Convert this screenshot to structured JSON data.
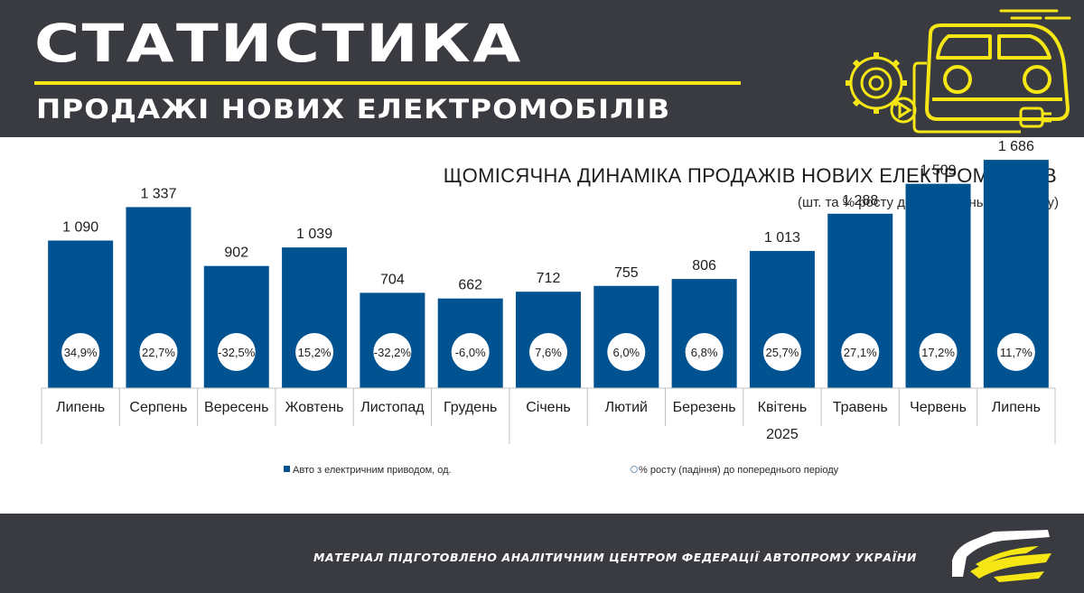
{
  "header": {
    "title": "СТАТИСТИКА",
    "subtitle": "ПРОДАЖІ НОВИХ ЕЛЕКТРОМОБІЛІВ",
    "illustration_icons": [
      "gear-icon",
      "play-icon",
      "electric-car-icon",
      "plug-icon"
    ],
    "accent_color": "#f5e614"
  },
  "chart_data": {
    "type": "bar",
    "title": "ЩОМІСЯЧНА ДИНАМІКА ПРОДАЖІВ НОВИХ ЕЛЕКТРОМОБІЛІВ",
    "subtitle": "(шт. та % росту до попереднього періоду)",
    "categories": [
      "Липень",
      "Серпень",
      "Вересень",
      "Жовтень",
      "Листопад",
      "Грудень",
      "Січень",
      "Лютий",
      "Березень",
      "Квітень",
      "Травень",
      "Червень",
      "Липень"
    ],
    "series": [
      {
        "name": "Авто з електричним приводом, од.",
        "values": [
          1090,
          1337,
          902,
          1039,
          704,
          662,
          712,
          755,
          806,
          1013,
          1288,
          1509,
          1686
        ],
        "labels": [
          "1 090",
          "1 337",
          "902",
          "1 039",
          "704",
          "662",
          "712",
          "755",
          "806",
          "1 013",
          "1 288",
          "1 509",
          "1 686"
        ],
        "color": "#005291"
      },
      {
        "name": "% росту (падіння) до попереднього періоду",
        "values": [
          34.9,
          22.7,
          -32.5,
          15.2,
          -32.2,
          -6.0,
          7.6,
          6.0,
          6.8,
          25.7,
          27.1,
          17.2,
          11.7
        ],
        "labels": [
          "34,9%",
          "22,7%",
          "-32,5%",
          "15,2%",
          "-32,2%",
          "-6,0%",
          "7,6%",
          "6,0%",
          "6,8%",
          "25,7%",
          "27,1%",
          "17,2%",
          "11,7%"
        ],
        "color": "#ffffff"
      }
    ],
    "year_group": {
      "label": "2025",
      "from_index": 6
    },
    "ylim": [
      0,
      1800
    ],
    "grid": false,
    "legend_position": "bottom"
  },
  "footer": {
    "text": "МАТЕРІАЛ ПІДГОТОВЛЕНО АНАЛІТИЧНИМ ЦЕНТРОМ ФЕДЕРАЦІЇ АВТОПРОМУ УКРАЇНИ",
    "logo_icon": "car-logo-icon"
  }
}
